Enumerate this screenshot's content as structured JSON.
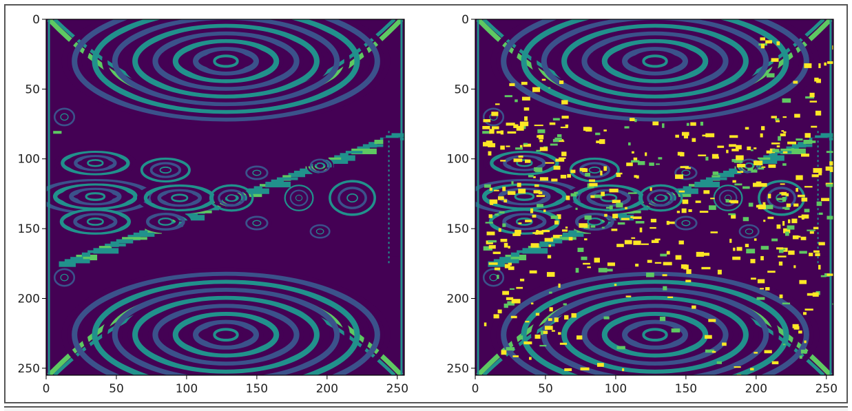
{
  "chart_data": [
    {
      "type": "heatmap",
      "title": "",
      "xlabel": "",
      "ylabel": "",
      "xlim": [
        0,
        255
      ],
      "ylim": [
        255,
        0
      ],
      "xticks": [
        0,
        50,
        100,
        150,
        200,
        250
      ],
      "yticks": [
        0,
        50,
        100,
        150,
        200,
        250
      ],
      "colormap": "viridis",
      "levels": [
        "#440154",
        "#3b528b",
        "#21918c",
        "#5ec962",
        "#fde725"
      ],
      "grid": false,
      "legend": "none"
    },
    {
      "type": "heatmap",
      "title": "",
      "xlabel": "",
      "ylabel": "",
      "xlim": [
        0,
        255
      ],
      "ylim": [
        255,
        0
      ],
      "xticks": [
        0,
        50,
        100,
        150,
        200,
        250
      ],
      "yticks": [
        0,
        50,
        100,
        150,
        200,
        250
      ],
      "colormap": "viridis",
      "levels": [
        "#440154",
        "#3b528b",
        "#21918c",
        "#5ec962",
        "#fde725"
      ],
      "grid": false,
      "legend": "none"
    }
  ]
}
